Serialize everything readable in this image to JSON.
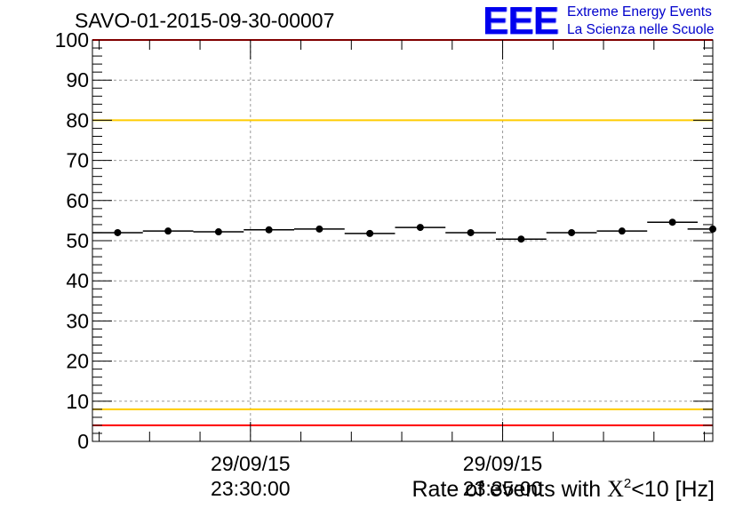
{
  "header": {
    "run_title": "SAVO-01-2015-09-30-00007"
  },
  "logo": {
    "mark": "EEE",
    "line1": "Extreme Energy Events",
    "line2": "La Scienza nelle Scuole"
  },
  "colors": {
    "axis": "#000000",
    "grid": "#999999",
    "marker": "#000000",
    "threshold_red": "#ff0000",
    "threshold_yellow": "#ffcc00",
    "logo_blue": "#0000ee"
  },
  "chart_data": {
    "type": "scatter",
    "title": "SAVO-01-2015-09-30-00007",
    "xlabel_prefix": "Rate of events with ",
    "xlabel_symbol": "X",
    "xlabel_exp": "2",
    "xlabel_suffix": "<10 [Hz]",
    "ylim": [
      0,
      100
    ],
    "yticks": [
      0,
      10,
      20,
      30,
      40,
      50,
      60,
      70,
      80,
      90,
      100
    ],
    "grid": true,
    "xlim": [
      "29/09/15 23:26:52",
      "29/09/15 23:39:10"
    ],
    "xticks": [
      {
        "date": "29/09/15",
        "time": "23:30:00"
      },
      {
        "date": "29/09/15",
        "time": "23:35:00"
      }
    ],
    "bin_width_seconds": 60,
    "series": [
      {
        "points": [
          {
            "x": "23:27:22",
            "y": 52.0
          },
          {
            "x": "23:28:22",
            "y": 52.4
          },
          {
            "x": "23:29:22",
            "y": 52.2
          },
          {
            "x": "23:30:22",
            "y": 52.7
          },
          {
            "x": "23:31:22",
            "y": 52.9
          },
          {
            "x": "23:32:22",
            "y": 51.8
          },
          {
            "x": "23:33:22",
            "y": 53.3
          },
          {
            "x": "23:34:22",
            "y": 52.0
          },
          {
            "x": "23:35:22",
            "y": 50.4
          },
          {
            "x": "23:36:22",
            "y": 52.0
          },
          {
            "x": "23:37:22",
            "y": 52.4
          },
          {
            "x": "23:38:22",
            "y": 54.6
          },
          {
            "x": "23:39:10",
            "y": 52.9
          }
        ]
      }
    ],
    "reference_lines": [
      {
        "y": 100,
        "color": "#ff0000"
      },
      {
        "y": 80,
        "color": "#ffcc00"
      },
      {
        "y": 8,
        "color": "#ffcc00"
      },
      {
        "y": 4,
        "color": "#ff0000"
      }
    ]
  }
}
